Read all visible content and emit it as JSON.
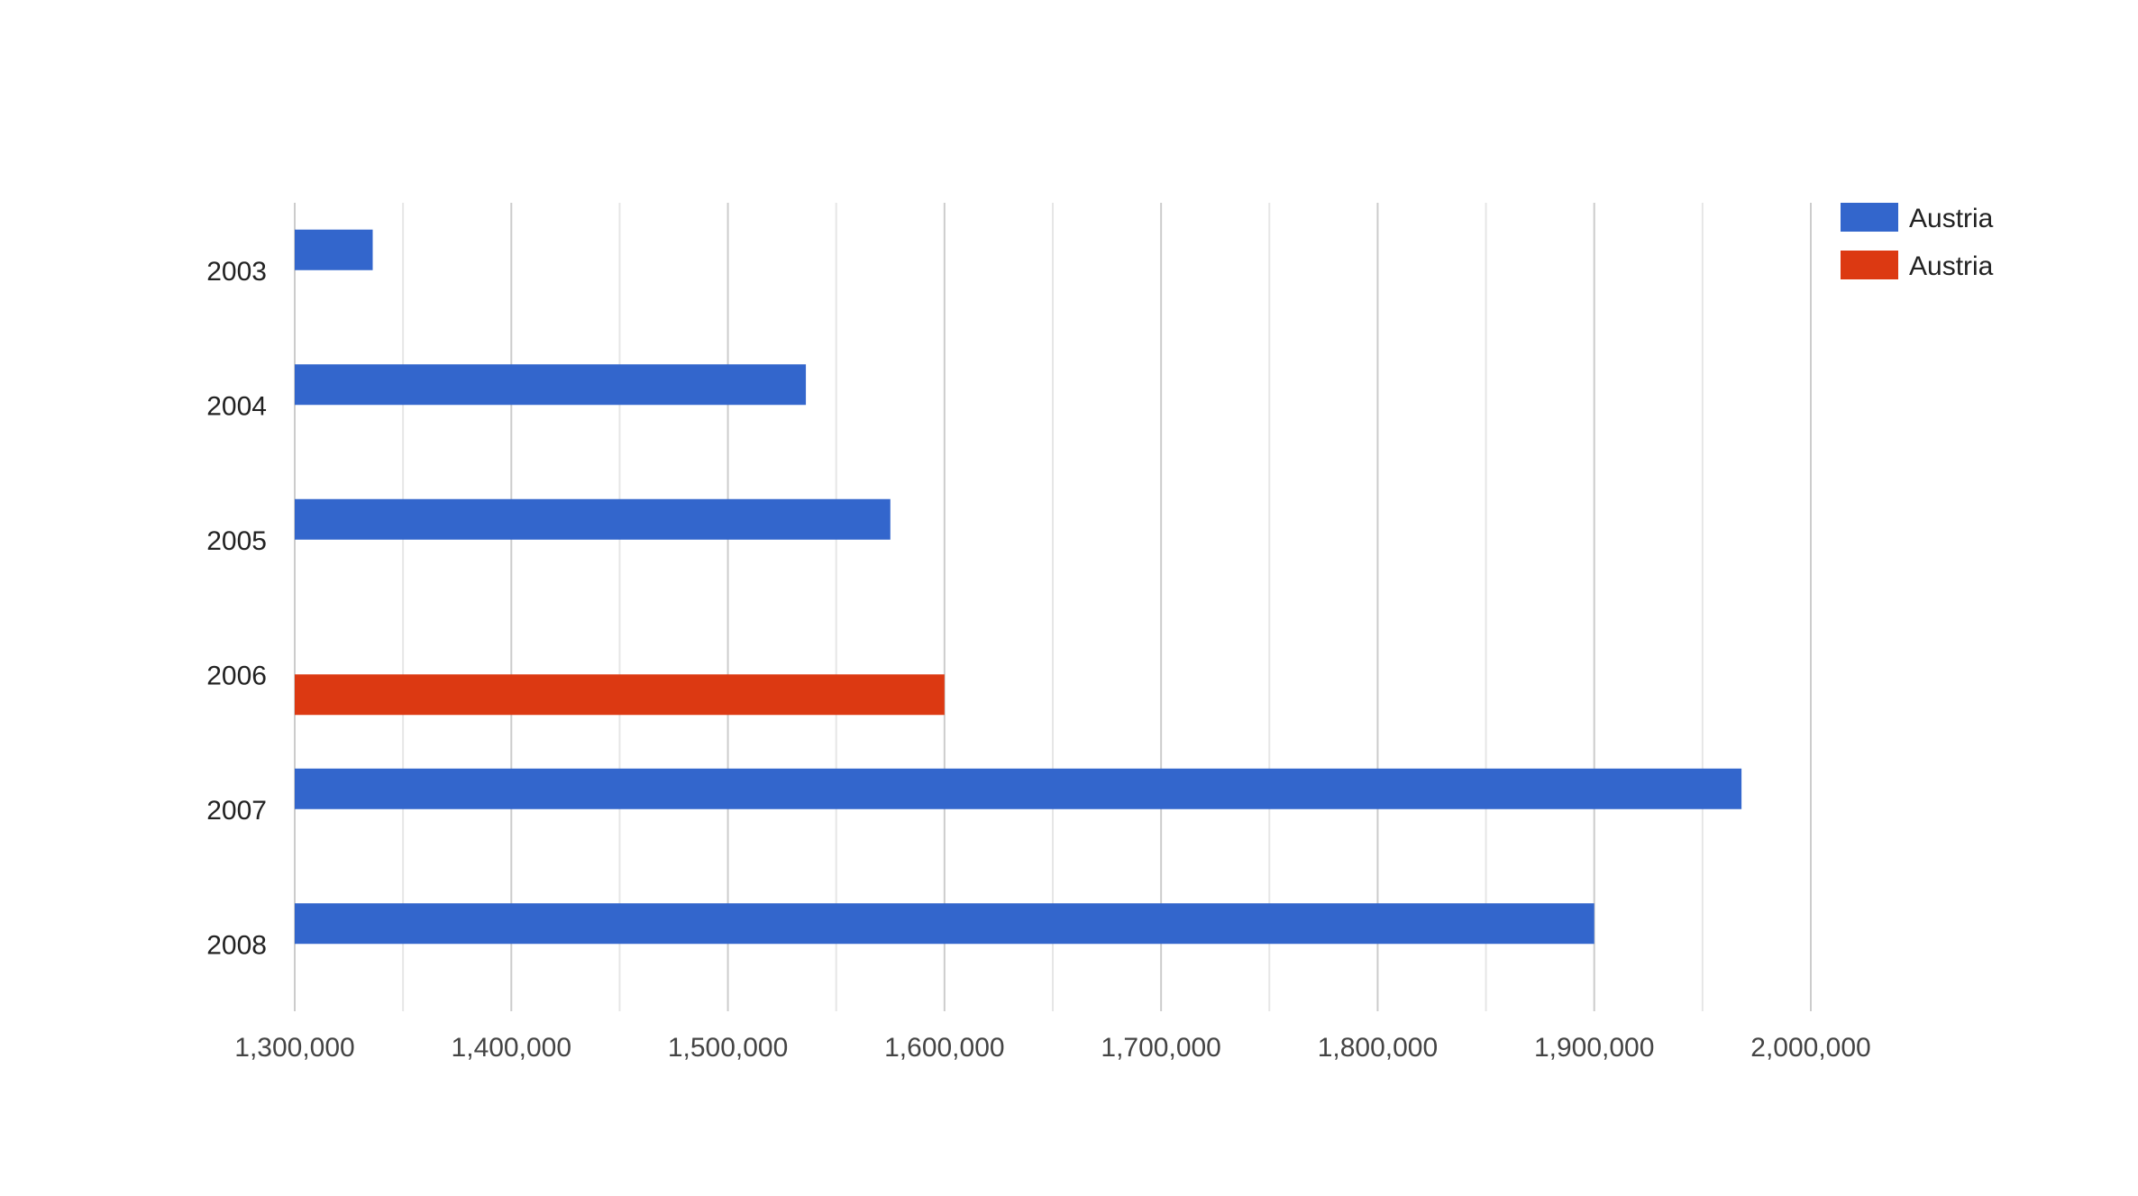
{
  "chart_data": {
    "type": "bar",
    "orientation": "horizontal",
    "title": "",
    "xlabel": "",
    "ylabel": "",
    "categories": [
      "2003",
      "2004",
      "2005",
      "2006",
      "2007",
      "2008"
    ],
    "series": [
      {
        "name": "Austria",
        "color": "#3366cc",
        "values": [
          1336000,
          1536000,
          1575000,
          null,
          1968000,
          1900000
        ]
      },
      {
        "name": "Austria",
        "color": "#dc3912",
        "values": [
          null,
          null,
          null,
          1600000,
          null,
          null
        ]
      }
    ],
    "xlim": [
      1300000,
      2000000
    ],
    "x_ticks": [
      1300000,
      1400000,
      1500000,
      1600000,
      1700000,
      1800000,
      1900000,
      2000000
    ],
    "x_tick_labels": [
      "1,300,000",
      "1,400,000",
      "1,500,000",
      "1,600,000",
      "1,700,000",
      "1,800,000",
      "1,900,000",
      "2,000,000"
    ],
    "minor_grid_step": 50000,
    "grid": true,
    "legend_position": "top-right"
  }
}
